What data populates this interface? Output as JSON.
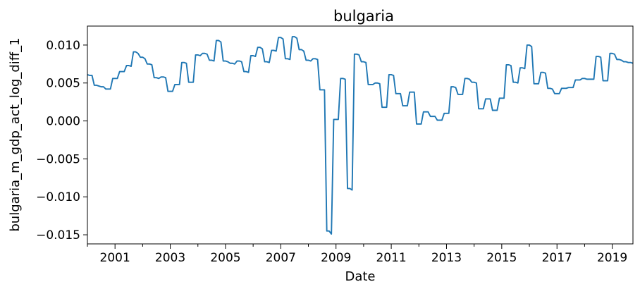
{
  "chart_data": {
    "type": "line",
    "title": "bulgaria",
    "xlabel": "Date",
    "ylabel": "bulgaria_m_gdp_act_log_diff_1",
    "x_start": "2000-01",
    "x_end": "2019-10",
    "xlim": [
      "2000-01",
      "2019-10"
    ],
    "ylim": [
      -0.0162,
      0.0125
    ],
    "x_tick_labels": [
      "2001",
      "2003",
      "2005",
      "2007",
      "2009",
      "2011",
      "2013",
      "2015",
      "2017",
      "2019"
    ],
    "y_ticks": [
      0.01,
      0.005,
      0.0,
      -0.005,
      -0.01,
      -0.015
    ],
    "y_tick_labels": [
      "0.010",
      "0.005",
      "0.000",
      "−0.005",
      "−0.010",
      "−0.015"
    ],
    "grid": false,
    "series": [
      {
        "color": "#1f77b4",
        "points": [
          [
            "2000-01",
            0.0061
          ],
          [
            "2000-02",
            0.006
          ],
          [
            "2000-03",
            0.006
          ],
          [
            "2000-04",
            0.0047
          ],
          [
            "2000-05",
            0.0047
          ],
          [
            "2000-06",
            0.0046
          ],
          [
            "2000-07",
            0.0045
          ],
          [
            "2000-08",
            0.0045
          ],
          [
            "2000-09",
            0.0042
          ],
          [
            "2000-10",
            0.0042
          ],
          [
            "2000-11",
            0.0042
          ],
          [
            "2000-12",
            0.0056
          ],
          [
            "2001-01",
            0.0056
          ],
          [
            "2001-02",
            0.0056
          ],
          [
            "2001-03",
            0.0065
          ],
          [
            "2001-04",
            0.0065
          ],
          [
            "2001-05",
            0.0065
          ],
          [
            "2001-06",
            0.0073
          ],
          [
            "2001-07",
            0.0073
          ],
          [
            "2001-08",
            0.0072
          ],
          [
            "2001-09",
            0.0091
          ],
          [
            "2001-10",
            0.0091
          ],
          [
            "2001-11",
            0.0089
          ],
          [
            "2001-12",
            0.0084
          ],
          [
            "2002-01",
            0.0084
          ],
          [
            "2002-02",
            0.0082
          ],
          [
            "2002-03",
            0.0075
          ],
          [
            "2002-04",
            0.0075
          ],
          [
            "2002-05",
            0.0074
          ],
          [
            "2002-06",
            0.0057
          ],
          [
            "2002-07",
            0.0057
          ],
          [
            "2002-08",
            0.0056
          ],
          [
            "2002-09",
            0.0058
          ],
          [
            "2002-10",
            0.0058
          ],
          [
            "2002-11",
            0.0057
          ],
          [
            "2002-12",
            0.0039
          ],
          [
            "2003-01",
            0.0039
          ],
          [
            "2003-02",
            0.0039
          ],
          [
            "2003-03",
            0.0048
          ],
          [
            "2003-04",
            0.0048
          ],
          [
            "2003-05",
            0.0048
          ],
          [
            "2003-06",
            0.0077
          ],
          [
            "2003-07",
            0.0077
          ],
          [
            "2003-08",
            0.0076
          ],
          [
            "2003-09",
            0.0051
          ],
          [
            "2003-10",
            0.0051
          ],
          [
            "2003-11",
            0.0051
          ],
          [
            "2003-12",
            0.0087
          ],
          [
            "2004-01",
            0.0087
          ],
          [
            "2004-02",
            0.0086
          ],
          [
            "2004-03",
            0.0089
          ],
          [
            "2004-04",
            0.0089
          ],
          [
            "2004-05",
            0.0088
          ],
          [
            "2004-06",
            0.008
          ],
          [
            "2004-07",
            0.008
          ],
          [
            "2004-08",
            0.0079
          ],
          [
            "2004-09",
            0.0106
          ],
          [
            "2004-10",
            0.0106
          ],
          [
            "2004-11",
            0.0104
          ],
          [
            "2004-12",
            0.0079
          ],
          [
            "2005-01",
            0.0079
          ],
          [
            "2005-02",
            0.0078
          ],
          [
            "2005-03",
            0.0076
          ],
          [
            "2005-04",
            0.0076
          ],
          [
            "2005-05",
            0.0075
          ],
          [
            "2005-06",
            0.0079
          ],
          [
            "2005-07",
            0.0079
          ],
          [
            "2005-08",
            0.0078
          ],
          [
            "2005-09",
            0.0065
          ],
          [
            "2005-10",
            0.0065
          ],
          [
            "2005-11",
            0.0064
          ],
          [
            "2005-12",
            0.0086
          ],
          [
            "2006-01",
            0.0086
          ],
          [
            "2006-02",
            0.0085
          ],
          [
            "2006-03",
            0.0097
          ],
          [
            "2006-04",
            0.0097
          ],
          [
            "2006-05",
            0.0095
          ],
          [
            "2006-06",
            0.0078
          ],
          [
            "2006-07",
            0.0078
          ],
          [
            "2006-08",
            0.0077
          ],
          [
            "2006-09",
            0.0093
          ],
          [
            "2006-10",
            0.0093
          ],
          [
            "2006-11",
            0.0092
          ],
          [
            "2006-12",
            0.011
          ],
          [
            "2007-01",
            0.011
          ],
          [
            "2007-02",
            0.0108
          ],
          [
            "2007-03",
            0.0082
          ],
          [
            "2007-04",
            0.0082
          ],
          [
            "2007-05",
            0.0081
          ],
          [
            "2007-06",
            0.0111
          ],
          [
            "2007-07",
            0.0111
          ],
          [
            "2007-08",
            0.0109
          ],
          [
            "2007-09",
            0.0094
          ],
          [
            "2007-10",
            0.0094
          ],
          [
            "2007-11",
            0.0092
          ],
          [
            "2007-12",
            0.008
          ],
          [
            "2008-01",
            0.008
          ],
          [
            "2008-02",
            0.0079
          ],
          [
            "2008-03",
            0.0082
          ],
          [
            "2008-04",
            0.0082
          ],
          [
            "2008-05",
            0.0081
          ],
          [
            "2008-06",
            0.0041
          ],
          [
            "2008-07",
            0.0041
          ],
          [
            "2008-08",
            0.0041
          ],
          [
            "2008-09",
            -0.0145
          ],
          [
            "2008-10",
            -0.0145
          ],
          [
            "2008-11",
            -0.0149
          ],
          [
            "2008-12",
            0.0002
          ],
          [
            "2009-01",
            0.0002
          ],
          [
            "2009-02",
            0.0002
          ],
          [
            "2009-03",
            0.0056
          ],
          [
            "2009-04",
            0.0056
          ],
          [
            "2009-05",
            0.0055
          ],
          [
            "2009-06",
            -0.0089
          ],
          [
            "2009-07",
            -0.0089
          ],
          [
            "2009-08",
            -0.0091
          ],
          [
            "2009-09",
            0.0088
          ],
          [
            "2009-10",
            0.0088
          ],
          [
            "2009-11",
            0.0087
          ],
          [
            "2009-12",
            0.0078
          ],
          [
            "2010-01",
            0.0078
          ],
          [
            "2010-02",
            0.0077
          ],
          [
            "2010-03",
            0.0048
          ],
          [
            "2010-04",
            0.0048
          ],
          [
            "2010-05",
            0.0048
          ],
          [
            "2010-06",
            0.005
          ],
          [
            "2010-07",
            0.005
          ],
          [
            "2010-08",
            0.0049
          ],
          [
            "2010-09",
            0.0018
          ],
          [
            "2010-10",
            0.0018
          ],
          [
            "2010-11",
            0.0018
          ],
          [
            "2010-12",
            0.0061
          ],
          [
            "2011-01",
            0.0061
          ],
          [
            "2011-02",
            0.006
          ],
          [
            "2011-03",
            0.0036
          ],
          [
            "2011-04",
            0.0036
          ],
          [
            "2011-05",
            0.0036
          ],
          [
            "2011-06",
            0.002
          ],
          [
            "2011-07",
            0.002
          ],
          [
            "2011-08",
            0.002
          ],
          [
            "2011-09",
            0.0038
          ],
          [
            "2011-10",
            0.0038
          ],
          [
            "2011-11",
            0.0038
          ],
          [
            "2011-12",
            -0.0004
          ],
          [
            "2012-01",
            -0.0004
          ],
          [
            "2012-02",
            -0.0004
          ],
          [
            "2012-03",
            0.0012
          ],
          [
            "2012-04",
            0.0012
          ],
          [
            "2012-05",
            0.0012
          ],
          [
            "2012-06",
            0.0006
          ],
          [
            "2012-07",
            0.0006
          ],
          [
            "2012-08",
            0.0006
          ],
          [
            "2012-09",
            0.0001
          ],
          [
            "2012-10",
            0.0001
          ],
          [
            "2012-11",
            0.0001
          ],
          [
            "2012-12",
            0.001
          ],
          [
            "2013-01",
            0.001
          ],
          [
            "2013-02",
            0.001
          ],
          [
            "2013-03",
            0.0045
          ],
          [
            "2013-04",
            0.0045
          ],
          [
            "2013-05",
            0.0044
          ],
          [
            "2013-06",
            0.0035
          ],
          [
            "2013-07",
            0.0035
          ],
          [
            "2013-08",
            0.0035
          ],
          [
            "2013-09",
            0.0056
          ],
          [
            "2013-10",
            0.0056
          ],
          [
            "2013-11",
            0.0055
          ],
          [
            "2013-12",
            0.0051
          ],
          [
            "2014-01",
            0.0051
          ],
          [
            "2014-02",
            0.005
          ],
          [
            "2014-03",
            0.0016
          ],
          [
            "2014-04",
            0.0016
          ],
          [
            "2014-05",
            0.0016
          ],
          [
            "2014-06",
            0.0029
          ],
          [
            "2014-07",
            0.0029
          ],
          [
            "2014-08",
            0.0029
          ],
          [
            "2014-09",
            0.0014
          ],
          [
            "2014-10",
            0.0014
          ],
          [
            "2014-11",
            0.0014
          ],
          [
            "2014-12",
            0.003
          ],
          [
            "2015-01",
            0.003
          ],
          [
            "2015-02",
            0.003
          ],
          [
            "2015-03",
            0.0074
          ],
          [
            "2015-04",
            0.0074
          ],
          [
            "2015-05",
            0.0073
          ],
          [
            "2015-06",
            0.0051
          ],
          [
            "2015-07",
            0.0051
          ],
          [
            "2015-08",
            0.005
          ],
          [
            "2015-09",
            0.007
          ],
          [
            "2015-10",
            0.007
          ],
          [
            "2015-11",
            0.0069
          ],
          [
            "2015-12",
            0.01
          ],
          [
            "2016-01",
            0.01
          ],
          [
            "2016-02",
            0.0098
          ],
          [
            "2016-03",
            0.0049
          ],
          [
            "2016-04",
            0.0049
          ],
          [
            "2016-05",
            0.0049
          ],
          [
            "2016-06",
            0.0064
          ],
          [
            "2016-07",
            0.0064
          ],
          [
            "2016-08",
            0.0063
          ],
          [
            "2016-09",
            0.0043
          ],
          [
            "2016-10",
            0.0043
          ],
          [
            "2016-11",
            0.0042
          ],
          [
            "2016-12",
            0.0036
          ],
          [
            "2017-01",
            0.0036
          ],
          [
            "2017-02",
            0.0036
          ],
          [
            "2017-03",
            0.0043
          ],
          [
            "2017-04",
            0.0043
          ],
          [
            "2017-05",
            0.0043
          ],
          [
            "2017-06",
            0.0044
          ],
          [
            "2017-07",
            0.0044
          ],
          [
            "2017-08",
            0.0044
          ],
          [
            "2017-09",
            0.0054
          ],
          [
            "2017-10",
            0.0054
          ],
          [
            "2017-11",
            0.0054
          ],
          [
            "2017-12",
            0.0056
          ],
          [
            "2018-01",
            0.0056
          ],
          [
            "2018-02",
            0.0055
          ],
          [
            "2018-03",
            0.0055
          ],
          [
            "2018-04",
            0.0055
          ],
          [
            "2018-05",
            0.0055
          ],
          [
            "2018-06",
            0.0085
          ],
          [
            "2018-07",
            0.0085
          ],
          [
            "2018-08",
            0.0084
          ],
          [
            "2018-09",
            0.0053
          ],
          [
            "2018-10",
            0.0053
          ],
          [
            "2018-11",
            0.0053
          ],
          [
            "2018-12",
            0.0089
          ],
          [
            "2019-01",
            0.0089
          ],
          [
            "2019-02",
            0.0088
          ],
          [
            "2019-03",
            0.0081
          ],
          [
            "2019-04",
            0.0081
          ],
          [
            "2019-05",
            0.008
          ],
          [
            "2019-06",
            0.0078
          ],
          [
            "2019-07",
            0.0078
          ],
          [
            "2019-08",
            0.0077
          ],
          [
            "2019-09",
            0.0077
          ],
          [
            "2019-10",
            0.0076
          ]
        ]
      }
    ]
  }
}
